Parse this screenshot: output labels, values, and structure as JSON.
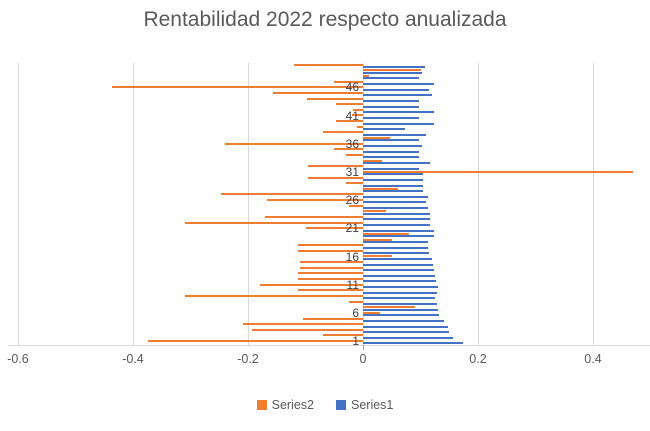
{
  "title": "Rentabilidad 2022 respecto anualizada",
  "colors": {
    "series1_blue": "#4472C4",
    "series2_orange": "#ED7D31",
    "gridline": "#D9D9D9",
    "axis_text": "#595959",
    "category_text": "#404040",
    "title_text": "#595959"
  },
  "legend": {
    "position": "bottom",
    "items": [
      {
        "label": "Series2",
        "color": "#ED7D31"
      },
      {
        "label": "Series1",
        "color": "#4472C4"
      }
    ]
  },
  "chart_data": {
    "type": "bar",
    "orientation": "horizontal",
    "title": "Rentabilidad 2022 respecto anualizada",
    "xlabel": "",
    "ylabel": "",
    "grid": true,
    "legend_position": "bottom",
    "categories": [
      1,
      2,
      3,
      4,
      5,
      6,
      7,
      8,
      9,
      10,
      11,
      12,
      13,
      14,
      15,
      16,
      17,
      18,
      19,
      20,
      21,
      22,
      23,
      24,
      25,
      26,
      27,
      28,
      29,
      30,
      31,
      32,
      33,
      34,
      35,
      36,
      37,
      38,
      39,
      40,
      41,
      42,
      43,
      44,
      45,
      46,
      47,
      48,
      49,
      50
    ],
    "category_axis_tick_labels": [
      "1",
      "6",
      "11",
      "16",
      "21",
      "26",
      "31",
      "36",
      "41",
      "46"
    ],
    "x_axis": {
      "min": -0.63,
      "max": 0.5,
      "ticks": [
        -0.6,
        -0.4,
        -0.2,
        0,
        0.2,
        0.4
      ],
      "labels": [
        "-0.6",
        "-0.4",
        "-0.2",
        "0",
        "0.2",
        "0.4"
      ]
    },
    "series": [
      {
        "name": "Series1",
        "color": "#4472C4",
        "values": [
          0.174,
          0.157,
          0.15,
          0.148,
          0.14,
          0.132,
          0.13,
          0.128,
          0.126,
          0.128,
          0.131,
          0.127,
          0.125,
          0.124,
          0.121,
          0.12,
          0.114,
          0.113,
          0.113,
          0.124,
          0.124,
          0.116,
          0.116,
          0.116,
          0.113,
          0.109,
          0.113,
          0.105,
          0.105,
          0.105,
          0.105,
          0.098,
          0.116,
          0.098,
          0.098,
          0.102,
          0.098,
          0.11,
          0.073,
          0.124,
          0.098,
          0.124,
          0.098,
          0.098,
          0.12,
          0.115,
          0.124,
          0.098,
          0.102,
          0.108
        ]
      },
      {
        "name": "Series2",
        "color": "#ED7D31",
        "values": [
          -0.374,
          -0.07,
          -0.193,
          -0.209,
          -0.105,
          0.03,
          0.09,
          -0.025,
          -0.31,
          -0.113,
          -0.18,
          -0.113,
          -0.113,
          -0.11,
          -0.11,
          0.05,
          -0.113,
          -0.113,
          0.05,
          0.08,
          -0.1,
          -0.31,
          -0.17,
          0.04,
          -0.025,
          -0.167,
          -0.247,
          0.06,
          -0.03,
          -0.095,
          0.47,
          -0.095,
          0.033,
          -0.03,
          -0.05,
          -0.24,
          0.047,
          -0.07,
          -0.01,
          -0.047,
          -0.02,
          -0.018,
          -0.047,
          -0.098,
          -0.156,
          -0.436,
          -0.05,
          0.01,
          0.1,
          -0.12
        ]
      }
    ]
  }
}
